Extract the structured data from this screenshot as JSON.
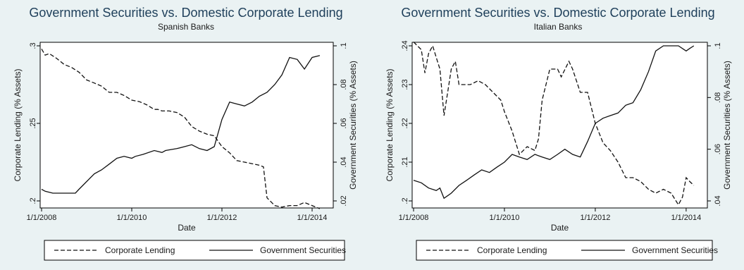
{
  "chart_data": [
    {
      "type": "line",
      "title": "Government Securities vs. Domestic Corporate Lending",
      "subtitle": "Spanish Banks",
      "xlabel": "Date",
      "ylabel_left": "Corporate Lending (% Assets)",
      "ylabel_right": "Government Securities (% Assets)",
      "x_ticks": [
        "1/1/2008",
        "1/1/2010",
        "1/1/2012",
        "1/1/2014"
      ],
      "x_range": [
        2008.0,
        2014.25
      ],
      "y_left_ticks": [
        ".2",
        ".25",
        ".3"
      ],
      "y_left_range": [
        0.2,
        0.3
      ],
      "y_right_ticks": [
        ".02",
        ".04",
        ".06",
        ".08",
        ".1"
      ],
      "y_right_range": [
        0.02,
        0.1
      ],
      "grid": false,
      "legend_position": "bottom",
      "series": [
        {
          "name": "Corporate Lending",
          "axis": "left",
          "style": "dashed",
          "x": [
            2008.0,
            2008.08,
            2008.17,
            2008.33,
            2008.5,
            2008.67,
            2008.83,
            2009.0,
            2009.17,
            2009.33,
            2009.5,
            2009.67,
            2009.83,
            2010.0,
            2010.17,
            2010.33,
            2010.5,
            2010.58,
            2010.67,
            2010.83,
            2011.0,
            2011.17,
            2011.33,
            2011.5,
            2011.67,
            2011.83,
            2012.0,
            2012.17,
            2012.33,
            2012.5,
            2012.67,
            2012.83,
            2012.92,
            2013.0,
            2013.17,
            2013.33,
            2013.5,
            2013.67,
            2013.83,
            2014.0,
            2014.17
          ],
          "values": [
            0.298,
            0.294,
            0.295,
            0.292,
            0.288,
            0.286,
            0.283,
            0.278,
            0.276,
            0.274,
            0.27,
            0.27,
            0.268,
            0.265,
            0.264,
            0.262,
            0.259,
            0.259,
            0.258,
            0.258,
            0.257,
            0.254,
            0.248,
            0.245,
            0.243,
            0.242,
            0.235,
            0.231,
            0.226,
            0.225,
            0.224,
            0.223,
            0.222,
            0.202,
            0.197,
            0.196,
            0.197,
            0.197,
            0.199,
            0.197,
            0.195
          ]
        },
        {
          "name": "Government Securities",
          "axis": "right",
          "style": "solid",
          "x": [
            2008.0,
            2008.08,
            2008.25,
            2008.5,
            2008.75,
            2008.83,
            2009.0,
            2009.17,
            2009.33,
            2009.5,
            2009.67,
            2009.83,
            2010.0,
            2010.08,
            2010.25,
            2010.5,
            2010.67,
            2010.75,
            2011.0,
            2011.17,
            2011.33,
            2011.5,
            2011.67,
            2011.83,
            2012.0,
            2012.17,
            2012.33,
            2012.5,
            2012.67,
            2012.83,
            2013.0,
            2013.17,
            2013.33,
            2013.5,
            2013.67,
            2013.83,
            2014.0,
            2014.17
          ],
          "values": [
            0.026,
            0.025,
            0.024,
            0.024,
            0.024,
            0.026,
            0.03,
            0.034,
            0.036,
            0.039,
            0.042,
            0.043,
            0.042,
            0.043,
            0.044,
            0.046,
            0.045,
            0.046,
            0.047,
            0.048,
            0.049,
            0.047,
            0.046,
            0.048,
            0.062,
            0.071,
            0.07,
            0.069,
            0.071,
            0.074,
            0.076,
            0.08,
            0.085,
            0.094,
            0.093,
            0.088,
            0.094,
            0.095
          ]
        }
      ]
    },
    {
      "type": "line",
      "title": "Government Securities vs. Domestic Corporate Lending",
      "subtitle": "Italian Banks",
      "xlabel": "Date",
      "ylabel_left": "Corporate Lending (% Assets)",
      "ylabel_right": "Government Securities (% Assets)",
      "x_ticks": [
        "1/1/2008",
        "1/1/2010",
        "1/1/2012",
        "1/1/2014"
      ],
      "x_range": [
        2008.0,
        2014.25
      ],
      "y_left_ticks": [
        ".2",
        ".21",
        ".22",
        ".23",
        ".24"
      ],
      "y_left_range": [
        0.2,
        0.24
      ],
      "y_right_ticks": [
        ".04",
        ".06",
        ".08",
        ".1"
      ],
      "y_right_range": [
        0.04,
        0.1
      ],
      "grid": false,
      "legend_position": "bottom",
      "series": [
        {
          "name": "Corporate Lending",
          "axis": "left",
          "style": "dashed",
          "x": [
            2008.0,
            2008.17,
            2008.25,
            2008.33,
            2008.42,
            2008.5,
            2008.58,
            2008.67,
            2008.75,
            2008.83,
            2008.92,
            2009.0,
            2009.17,
            2009.25,
            2009.42,
            2009.58,
            2009.75,
            2009.92,
            2010.0,
            2010.17,
            2010.33,
            2010.5,
            2010.67,
            2010.75,
            2010.83,
            2011.0,
            2011.17,
            2011.25,
            2011.42,
            2011.5,
            2011.67,
            2011.83,
            2012.0,
            2012.17,
            2012.33,
            2012.5,
            2012.67,
            2012.83,
            2013.0,
            2013.17,
            2013.33,
            2013.5,
            2013.67,
            2013.83,
            2013.92,
            2014.0,
            2014.08,
            2014.17
          ],
          "values": [
            0.241,
            0.239,
            0.233,
            0.238,
            0.24,
            0.237,
            0.234,
            0.222,
            0.228,
            0.234,
            0.236,
            0.23,
            0.23,
            0.23,
            0.231,
            0.23,
            0.228,
            0.226,
            0.223,
            0.218,
            0.212,
            0.214,
            0.213,
            0.216,
            0.226,
            0.234,
            0.234,
            0.232,
            0.236,
            0.234,
            0.228,
            0.228,
            0.22,
            0.215,
            0.213,
            0.21,
            0.206,
            0.206,
            0.205,
            0.203,
            0.202,
            0.203,
            0.202,
            0.199,
            0.201,
            0.206,
            0.205,
            0.204
          ]
        },
        {
          "name": "Government Securities",
          "axis": "right",
          "style": "solid",
          "x": [
            2008.0,
            2008.17,
            2008.33,
            2008.5,
            2008.58,
            2008.67,
            2008.83,
            2009.0,
            2009.17,
            2009.33,
            2009.5,
            2009.67,
            2009.83,
            2010.0,
            2010.17,
            2010.33,
            2010.5,
            2010.67,
            2010.83,
            2011.0,
            2011.17,
            2011.33,
            2011.5,
            2011.67,
            2011.83,
            2012.0,
            2012.17,
            2012.33,
            2012.5,
            2012.67,
            2012.83,
            2013.0,
            2013.17,
            2013.33,
            2013.5,
            2013.67,
            2013.83,
            2014.0,
            2014.08,
            2014.17
          ],
          "values": [
            0.048,
            0.047,
            0.045,
            0.044,
            0.045,
            0.041,
            0.043,
            0.046,
            0.048,
            0.05,
            0.052,
            0.051,
            0.053,
            0.055,
            0.058,
            0.057,
            0.056,
            0.058,
            0.057,
            0.056,
            0.058,
            0.06,
            0.058,
            0.057,
            0.063,
            0.07,
            0.072,
            0.073,
            0.074,
            0.077,
            0.078,
            0.083,
            0.09,
            0.098,
            0.1,
            0.1,
            0.1,
            0.098,
            0.099,
            0.1
          ]
        }
      ]
    }
  ]
}
